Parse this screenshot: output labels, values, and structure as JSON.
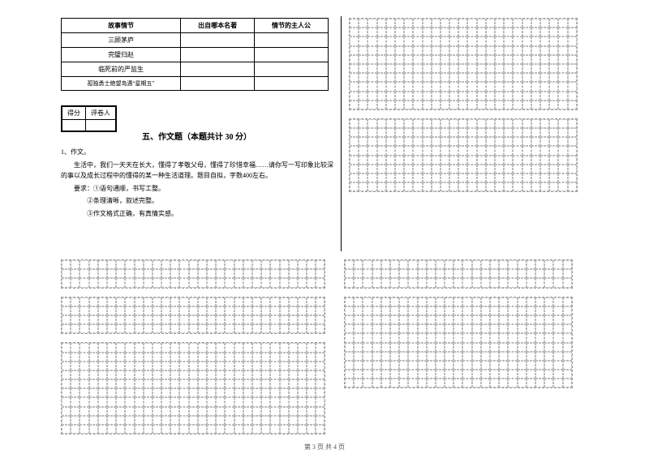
{
  "table": {
    "headers": [
      "故事情节",
      "出自哪本名著",
      "情节的主人公"
    ],
    "rows": [
      [
        "三顾茅庐",
        "",
        ""
      ],
      [
        "完璧归赵",
        "",
        ""
      ],
      [
        "临死前的严监生",
        "",
        ""
      ],
      [
        "孤独勇士绝望岛遇“星期五”",
        "",
        ""
      ]
    ]
  },
  "scorebox": {
    "col1": "得分",
    "col2": "评卷人"
  },
  "section_title": "五、作文题（本题共计 30 分）",
  "q_num": "1、作文。",
  "para1": "生活中，我们一天天在长大，懂得了孝敬父母，懂得了珍惜幸福……请你写一写印象比较深的事以及成长过程中的懂得的某一种生活道理。题目自拟，字数400左右。",
  "req_label": "要求：",
  "req1": "①语句通顺，书写工整。",
  "req2": "②条理清晰，叙述完整。",
  "req3": "③作文格式正确，有真情实感。",
  "footer": "第 3 页  共 4 页",
  "grid": {
    "right_block1": {
      "rows": 10,
      "cols": 25
    },
    "right_block2": {
      "rows": 8,
      "cols": 25
    },
    "bottom_block1": {
      "rows": 3,
      "cols": 29
    },
    "bottom_block2": {
      "rows": 4,
      "cols": 29
    },
    "bottom_block3": {
      "rows": 10,
      "cols": 29
    },
    "bottom_right1": {
      "rows": 3,
      "cols": 25
    },
    "bottom_right2": {
      "rows": 10,
      "cols": 25
    }
  },
  "colors": {
    "border": "#000000",
    "dash": "#bbbbbb",
    "bg": "#ffffff"
  }
}
